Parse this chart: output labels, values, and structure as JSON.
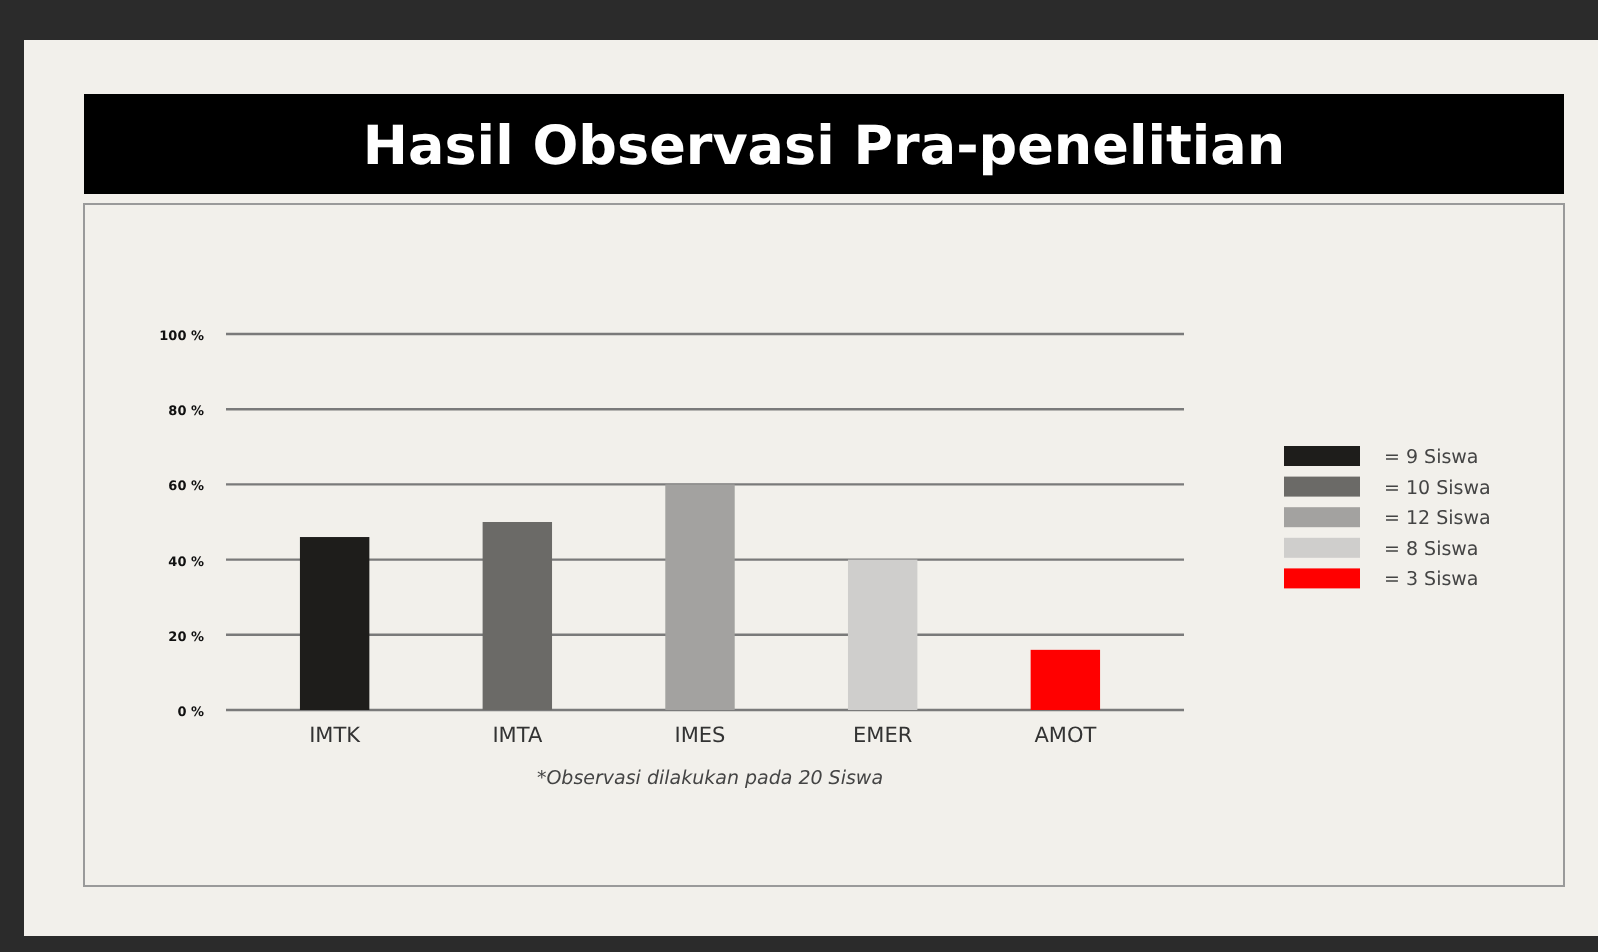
{
  "chart_data": {
    "type": "bar",
    "title": "Hasil Observasi Pra-penelitian",
    "categories": [
      "IMTK",
      "IMTA",
      "IMES",
      "EMER",
      "AMOT"
    ],
    "series": [
      {
        "name": "= 9 Siswa",
        "color": "#1e1d1b",
        "values": [
          46,
          null,
          null,
          null,
          null
        ]
      },
      {
        "name": "= 10 Siswa",
        "color": "#6b6a67",
        "values": [
          null,
          50,
          null,
          null,
          null
        ]
      },
      {
        "name": "= 12 Siswa",
        "color": "#a3a2a0",
        "values": [
          null,
          null,
          60,
          null,
          null
        ]
      },
      {
        "name": "= 8 Siswa",
        "color": "#cfcecc",
        "values": [
          null,
          null,
          null,
          40,
          null
        ]
      },
      {
        "name": "= 3 Siswa",
        "color": "#ff0000",
        "values": [
          null,
          null,
          null,
          null,
          16
        ]
      }
    ],
    "ylim": [
      0,
      100
    ],
    "yticks": [
      {
        "value": 0,
        "label": "0 %"
      },
      {
        "value": 20,
        "label": "20 %"
      },
      {
        "value": 40,
        "label": "40 %"
      },
      {
        "value": 60,
        "label": "60 %"
      },
      {
        "value": 80,
        "label": "80 %"
      },
      {
        "value": 100,
        "label": "100 %"
      }
    ],
    "grid": "y",
    "legend": "right",
    "annotations": [
      "*Observasi dilakukan pada 20 Siswa"
    ]
  }
}
